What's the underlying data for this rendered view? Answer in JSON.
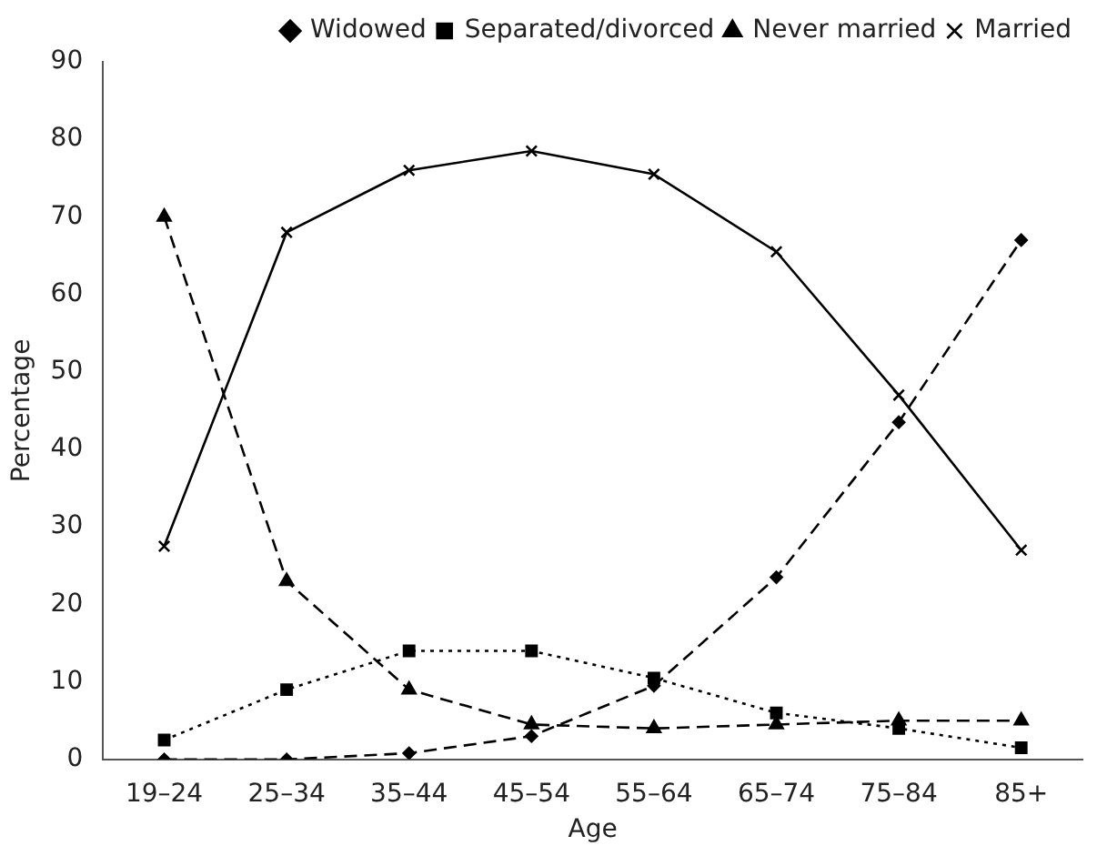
{
  "chart_data": {
    "type": "line",
    "xlabel": "Age",
    "ylabel": "Percentage",
    "categories": [
      "19–24",
      "25–34",
      "35–44",
      "45–54",
      "55–64",
      "65–74",
      "75–84",
      "85+"
    ],
    "ylim": [
      0,
      90
    ],
    "yticks": [
      0,
      10,
      20,
      30,
      40,
      50,
      60,
      70,
      80,
      90
    ],
    "grid": false,
    "legend": "top right",
    "series": [
      {
        "name": "Widowed",
        "color": "#000000",
        "marker": "diamond",
        "line_style": "dashed",
        "values": [
          0,
          0,
          0.8,
          3,
          9.5,
          23.5,
          43.5,
          67
        ]
      },
      {
        "name": "Separated/divorced",
        "color": "#000000",
        "marker": "square",
        "line_style": "dotted",
        "values": [
          2.5,
          9,
          14,
          14,
          10.5,
          6,
          4,
          1.5
        ]
      },
      {
        "name": "Never married",
        "color": "#000000",
        "marker": "triangle",
        "line_style": "dashed",
        "values": [
          70,
          23,
          9,
          4.5,
          4,
          4.5,
          5,
          5
        ]
      },
      {
        "name": "Married",
        "color": "#000000",
        "marker": "cross",
        "line_style": "solid",
        "values": [
          27.5,
          68,
          76,
          78.5,
          75.5,
          65.5,
          47,
          27
        ]
      }
    ]
  }
}
